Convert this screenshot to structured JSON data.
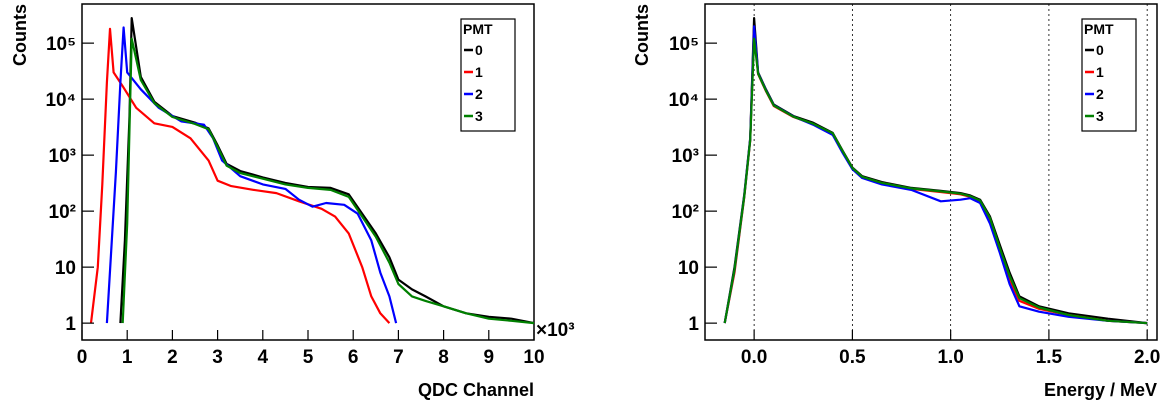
{
  "chart_data": [
    {
      "type": "line",
      "xlabel": "QDC Channel",
      "ylabel": "Counts",
      "x_multiplier": "×10³",
      "xlim": [
        0,
        10
      ],
      "ylim": [
        0.5,
        500000
      ],
      "yscale": "log",
      "x_ticks": [
        "0",
        "1",
        "2",
        "3",
        "4",
        "5",
        "6",
        "7",
        "8",
        "9",
        "10"
      ],
      "y_ticks": [
        "1",
        "10",
        "10²",
        "10³",
        "10⁴",
        "10⁵"
      ],
      "grid": false,
      "legend": {
        "title": "PMT",
        "position": "top-right",
        "entries": [
          "0",
          "1",
          "2",
          "3"
        ]
      },
      "series": [
        {
          "name": "0",
          "color": "#000000",
          "x": [
            0.85,
            0.95,
            1.05,
            1.1,
            1.3,
            1.6,
            2.0,
            2.5,
            2.8,
            3.0,
            3.2,
            3.5,
            4.0,
            4.5,
            5.0,
            5.5,
            5.9,
            6.2,
            6.5,
            6.8,
            7.0,
            7.3,
            7.6,
            8.0,
            8.5,
            9.0,
            9.5,
            10.0
          ],
          "y": [
            1,
            30,
            5000,
            280000,
            25000,
            9000,
            5000,
            3800,
            3000,
            1500,
            700,
            520,
            400,
            320,
            270,
            260,
            200,
            90,
            40,
            15,
            6,
            4,
            3,
            2,
            1.5,
            1.3,
            1.2,
            1
          ]
        },
        {
          "name": "1",
          "color": "#ff0000",
          "x": [
            0.2,
            0.35,
            0.45,
            0.55,
            0.62,
            0.7,
            0.9,
            1.2,
            1.6,
            2.0,
            2.4,
            2.8,
            3.0,
            3.3,
            3.8,
            4.3,
            4.8,
            5.3,
            5.6,
            5.9,
            6.2,
            6.4,
            6.6,
            6.8
          ],
          "y": [
            1,
            10,
            300,
            20000,
            180000,
            30000,
            17000,
            7000,
            3700,
            3200,
            2000,
            800,
            350,
            280,
            240,
            210,
            150,
            110,
            80,
            40,
            10,
            3,
            1.5,
            1
          ]
        },
        {
          "name": "2",
          "color": "#0000ff",
          "x": [
            0.55,
            0.75,
            0.85,
            0.92,
            1.0,
            1.3,
            1.7,
            2.2,
            2.7,
            2.9,
            3.1,
            3.5,
            4.0,
            4.5,
            4.8,
            5.1,
            5.4,
            5.8,
            6.1,
            6.4,
            6.6,
            6.8,
            6.95
          ],
          "y": [
            1,
            500,
            20000,
            190000,
            30000,
            15000,
            7000,
            4000,
            3500,
            2000,
            800,
            420,
            300,
            250,
            160,
            120,
            140,
            130,
            90,
            30,
            8,
            3,
            1
          ]
        },
        {
          "name": "3",
          "color": "#008000",
          "x": [
            0.9,
            1.0,
            1.05,
            1.1,
            1.3,
            1.6,
            2.0,
            2.5,
            2.8,
            3.0,
            3.2,
            3.5,
            4.0,
            4.5,
            5.0,
            5.5,
            5.9,
            6.2,
            6.5,
            6.8,
            7.0,
            7.3,
            7.6,
            8.0,
            8.5,
            9.0,
            9.5,
            10.0
          ],
          "y": [
            1,
            60,
            3000,
            120000,
            22000,
            8500,
            4800,
            3600,
            2900,
            1400,
            650,
            480,
            380,
            300,
            260,
            240,
            180,
            80,
            35,
            12,
            5,
            3,
            2.5,
            2,
            1.5,
            1.2,
            1.1,
            1
          ]
        }
      ]
    },
    {
      "type": "line",
      "xlabel": "Energy / MeV",
      "ylabel": "Counts",
      "xlim": [
        -0.25,
        2.05
      ],
      "ylim": [
        0.5,
        500000
      ],
      "yscale": "log",
      "x_ticks": [
        "0.0",
        "0.5",
        "1.0",
        "1.5",
        "2.0"
      ],
      "y_ticks": [
        "1",
        "10",
        "10²",
        "10³",
        "10⁴",
        "10⁵"
      ],
      "grid": true,
      "legend": {
        "title": "PMT",
        "position": "top-right",
        "entries": [
          "0",
          "1",
          "2",
          "3"
        ]
      },
      "series": [
        {
          "name": "0",
          "color": "#000000",
          "x": [
            -0.15,
            -0.1,
            -0.05,
            -0.02,
            0.0,
            0.02,
            0.06,
            0.1,
            0.2,
            0.3,
            0.4,
            0.45,
            0.5,
            0.55,
            0.65,
            0.8,
            0.95,
            1.05,
            1.1,
            1.15,
            1.2,
            1.25,
            1.3,
            1.35,
            1.45,
            1.6,
            1.8,
            2.0
          ],
          "y": [
            1,
            10,
            200,
            2000,
            280000,
            30000,
            15000,
            8000,
            5000,
            3800,
            2500,
            1200,
            600,
            420,
            330,
            260,
            230,
            210,
            190,
            160,
            80,
            25,
            8,
            3,
            2,
            1.5,
            1.2,
            1
          ]
        },
        {
          "name": "1",
          "color": "#ff0000",
          "x": [
            -0.15,
            -0.1,
            -0.05,
            -0.02,
            0.0,
            0.02,
            0.06,
            0.1,
            0.2,
            0.3,
            0.4,
            0.45,
            0.5,
            0.55,
            0.65,
            0.8,
            0.95,
            1.05,
            1.1,
            1.15,
            1.2,
            1.25,
            1.3,
            1.35,
            1.45,
            1.6,
            1.8,
            2.0
          ],
          "y": [
            1,
            8,
            180,
            1800,
            180000,
            28000,
            14000,
            7500,
            4800,
            3600,
            2400,
            1150,
            580,
            400,
            320,
            250,
            220,
            200,
            180,
            150,
            70,
            20,
            6,
            2.5,
            1.8,
            1.4,
            1.1,
            1
          ]
        },
        {
          "name": "2",
          "color": "#0000ff",
          "x": [
            -0.15,
            -0.1,
            -0.05,
            -0.02,
            0.0,
            0.02,
            0.06,
            0.1,
            0.2,
            0.3,
            0.4,
            0.45,
            0.5,
            0.55,
            0.65,
            0.8,
            0.95,
            1.05,
            1.1,
            1.15,
            1.2,
            1.25,
            1.3,
            1.35,
            1.45,
            1.6,
            1.8,
            2.0
          ],
          "y": [
            1,
            9,
            190,
            1900,
            200000,
            29000,
            14500,
            7800,
            4900,
            3500,
            2300,
            1100,
            560,
            390,
            300,
            240,
            150,
            160,
            170,
            140,
            60,
            18,
            5,
            2,
            1.6,
            1.3,
            1.1,
            1
          ]
        },
        {
          "name": "3",
          "color": "#008000",
          "x": [
            -0.15,
            -0.1,
            -0.05,
            -0.02,
            0.0,
            0.02,
            0.06,
            0.1,
            0.2,
            0.3,
            0.4,
            0.45,
            0.5,
            0.55,
            0.65,
            0.8,
            0.95,
            1.05,
            1.1,
            1.15,
            1.2,
            1.25,
            1.3,
            1.35,
            1.45,
            1.6,
            1.8,
            2.0
          ],
          "y": [
            1,
            9,
            185,
            1850,
            120000,
            28500,
            14200,
            7700,
            4850,
            3650,
            2450,
            1180,
            590,
            410,
            320,
            255,
            225,
            205,
            185,
            155,
            75,
            22,
            7,
            2.8,
            1.9,
            1.4,
            1.1,
            1
          ]
        }
      ]
    }
  ]
}
